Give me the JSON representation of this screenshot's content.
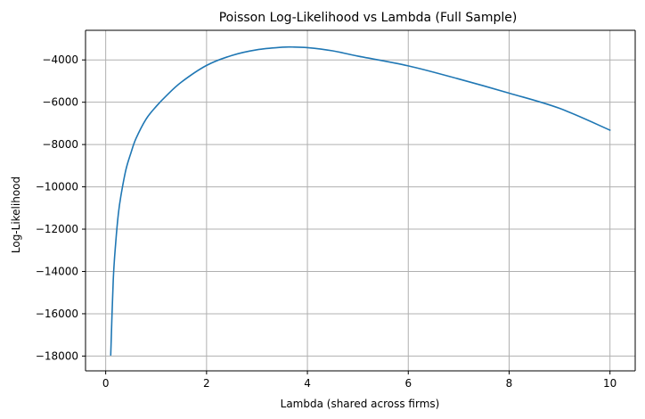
{
  "chart_data": {
    "type": "line",
    "title": "Poisson Log-Likelihood vs Lambda (Full Sample)",
    "xlabel": "Lambda (shared across firms)",
    "ylabel": "Log-Likelihood",
    "xlim": [
      -0.4,
      10.5
    ],
    "ylim": [
      -18700,
      -2600
    ],
    "grid": true,
    "x_ticks": [
      0,
      2,
      4,
      6,
      8,
      10
    ],
    "x_tick_labels": [
      "0",
      "2",
      "4",
      "6",
      "8",
      "10"
    ],
    "y_ticks": [
      -18000,
      -16000,
      -14000,
      -12000,
      -10000,
      -8000,
      -6000,
      -4000
    ],
    "y_tick_labels": [
      "−18000",
      "−16000",
      "−14000",
      "−12000",
      "−10000",
      "−8000",
      "−6000",
      "−4000"
    ],
    "series": [
      {
        "name": "log_likelihood",
        "color": "#1f77b4",
        "x": [
          0.1,
          0.15,
          0.2,
          0.25,
          0.3,
          0.4,
          0.5,
          0.6,
          0.8,
          1.0,
          1.2,
          1.5,
          2.0,
          2.5,
          3.0,
          3.5,
          3.7,
          4.0,
          4.5,
          5.0,
          6.0,
          7.0,
          8.0,
          9.0,
          10.0
        ],
        "values": [
          -17950,
          -14400,
          -12600,
          -11300,
          -10450,
          -9200,
          -8400,
          -7720,
          -6800,
          -6200,
          -5700,
          -5050,
          -4260,
          -3790,
          -3520,
          -3400,
          -3390,
          -3420,
          -3570,
          -3820,
          -4280,
          -4900,
          -5570,
          -6290,
          -7320
        ]
      }
    ]
  }
}
